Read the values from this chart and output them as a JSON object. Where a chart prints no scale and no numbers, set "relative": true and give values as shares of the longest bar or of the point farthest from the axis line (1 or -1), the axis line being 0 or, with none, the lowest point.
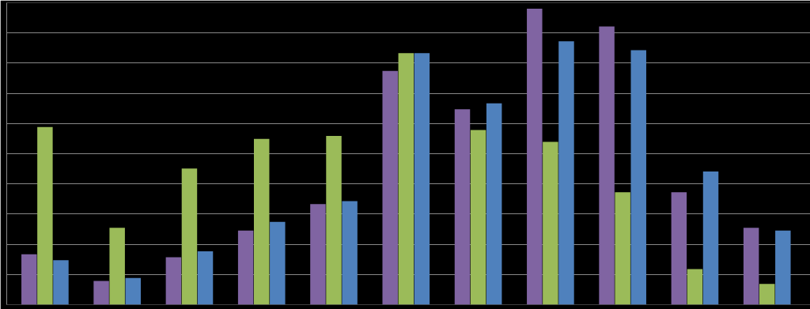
{
  "chart_data": {
    "type": "bar",
    "relative": true,
    "grid": "y",
    "categories": [
      null,
      null,
      null,
      null,
      null,
      null,
      null,
      null,
      null,
      null,
      null
    ],
    "series": [
      {
        "color": "#8064a2",
        "values": [
          0.17,
          0.08,
          0.16,
          0.25,
          0.34,
          0.79,
          0.66,
          1,
          0.94,
          0.38,
          0.26
        ]
      },
      {
        "color": "#9bbb59",
        "values": [
          0.6,
          0.26,
          0.46,
          0.56,
          0.57,
          0.85,
          0.59,
          0.55,
          0.38,
          0.12,
          0.07
        ]
      },
      {
        "color": "#4f81bd",
        "values": [
          0.15,
          0.09,
          0.18,
          0.28,
          0.35,
          0.85,
          0.68,
          0.89,
          0.86,
          0.45,
          0.25
        ]
      }
    ]
  }
}
